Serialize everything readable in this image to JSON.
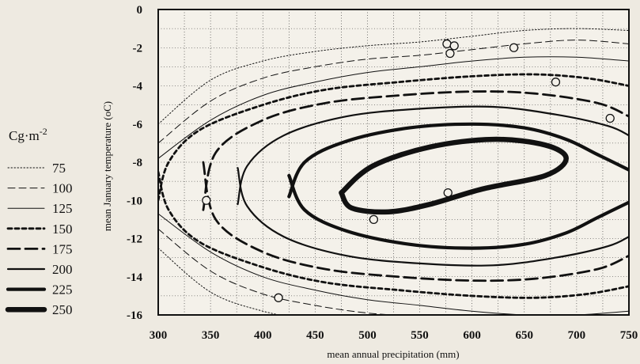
{
  "chart_data": {
    "type": "contour",
    "xlabel": "mean annual precipitation (mm)",
    "ylabel": "mean January temperature (oC)",
    "xlim": [
      300,
      750
    ],
    "ylim": [
      -16,
      0
    ],
    "x_ticks": [
      "300",
      "350",
      "400",
      "450",
      "500",
      "550",
      "600",
      "650",
      "700",
      "750"
    ],
    "y_ticks": [
      "0",
      "-2",
      "-4",
      "-6",
      "-8",
      "-10",
      "-12",
      "-14",
      "-16"
    ],
    "grid": true,
    "legend": {
      "position": "left",
      "title": "Cg·m",
      "title_superscript": "-2",
      "entries": [
        {
          "label": "75",
          "style": "dotted"
        },
        {
          "label": "100",
          "style": "dashed-thin"
        },
        {
          "label": "125",
          "style": "solid-thin"
        },
        {
          "label": "150",
          "style": "dotted-bold"
        },
        {
          "label": "175",
          "style": "dashed-bold"
        },
        {
          "label": "200",
          "style": "solid"
        },
        {
          "label": "225",
          "style": "solid-thick"
        },
        {
          "label": "250",
          "style": "solid-extra-thick"
        }
      ]
    },
    "contours": [
      {
        "level": 75,
        "points": [
          [
            300,
            -6
          ],
          [
            350,
            -3.7
          ],
          [
            400,
            -2.7
          ],
          [
            450,
            -2.2
          ],
          [
            500,
            -1.9
          ],
          [
            550,
            -1.7
          ],
          [
            600,
            -1.4
          ],
          [
            650,
            -1.1
          ],
          [
            700,
            -1.0
          ],
          [
            750,
            -1.1
          ]
        ]
      },
      {
        "level": 100,
        "points": [
          [
            300,
            -7
          ],
          [
            350,
            -4.8
          ],
          [
            400,
            -3.6
          ],
          [
            450,
            -3.0
          ],
          [
            500,
            -2.6
          ],
          [
            550,
            -2.4
          ],
          [
            600,
            -2.1
          ],
          [
            650,
            -1.8
          ],
          [
            700,
            -1.6
          ],
          [
            750,
            -1.8
          ]
        ]
      },
      {
        "level": 125,
        "points": [
          [
            300,
            -7.8
          ],
          [
            350,
            -5.8
          ],
          [
            400,
            -4.5
          ],
          [
            450,
            -3.8
          ],
          [
            500,
            -3.3
          ],
          [
            550,
            -3.0
          ],
          [
            600,
            -2.7
          ],
          [
            650,
            -2.5
          ],
          [
            700,
            -2.5
          ],
          [
            750,
            -2.7
          ]
        ]
      },
      {
        "level": 150,
        "points": [
          [
            300,
            -10.0
          ],
          [
            310,
            -8.0
          ],
          [
            340,
            -6.3
          ],
          [
            400,
            -5.0
          ],
          [
            460,
            -4.2
          ],
          [
            530,
            -3.8
          ],
          [
            600,
            -3.5
          ],
          [
            660,
            -3.4
          ],
          [
            710,
            -3.6
          ],
          [
            750,
            -4.0
          ]
        ]
      },
      {
        "level": 175,
        "points": [
          [
            343,
            -10.5
          ],
          [
            355,
            -7.5
          ],
          [
            400,
            -5.8
          ],
          [
            460,
            -4.9
          ],
          [
            530,
            -4.5
          ],
          [
            600,
            -4.3
          ],
          [
            660,
            -4.4
          ],
          [
            720,
            -4.9
          ],
          [
            750,
            -5.6
          ]
        ]
      },
      {
        "level": 200,
        "points": [
          [
            376,
            -10.2
          ],
          [
            385,
            -8.2
          ],
          [
            420,
            -6.6
          ],
          [
            480,
            -5.6
          ],
          [
            550,
            -5.2
          ],
          [
            620,
            -5.1
          ],
          [
            680,
            -5.5
          ],
          [
            730,
            -6.1
          ],
          [
            750,
            -6.6
          ]
        ]
      },
      {
        "level": 225,
        "points": [
          [
            425,
            -9.8
          ],
          [
            440,
            -8.0
          ],
          [
            480,
            -6.9
          ],
          [
            540,
            -6.2
          ],
          [
            600,
            -6.0
          ],
          [
            650,
            -6.2
          ],
          [
            690,
            -6.8
          ],
          [
            720,
            -7.6
          ],
          [
            750,
            -8.4
          ]
        ]
      },
      {
        "level": 250,
        "points": [
          [
            475,
            -9.6
          ],
          [
            505,
            -8.2
          ],
          [
            560,
            -7.2
          ],
          [
            620,
            -6.8
          ],
          [
            670,
            -7.1
          ],
          [
            690,
            -7.8
          ],
          [
            670,
            -8.7
          ],
          [
            610,
            -9.4
          ],
          [
            560,
            -10.2
          ],
          [
            520,
            -10.6
          ],
          [
            485,
            -10.4
          ],
          [
            475,
            -9.6
          ]
        ]
      }
    ],
    "points": [
      {
        "x": 576,
        "y": -1.8
      },
      {
        "x": 583,
        "y": -1.9
      },
      {
        "x": 579,
        "y": -2.3
      },
      {
        "x": 640,
        "y": -2.0
      },
      {
        "x": 680,
        "y": -3.8
      },
      {
        "x": 732,
        "y": -5.7
      },
      {
        "x": 346,
        "y": -10.0
      },
      {
        "x": 506,
        "y": -11.0
      },
      {
        "x": 577,
        "y": -9.6
      },
      {
        "x": 415,
        "y": -15.1
      }
    ]
  }
}
